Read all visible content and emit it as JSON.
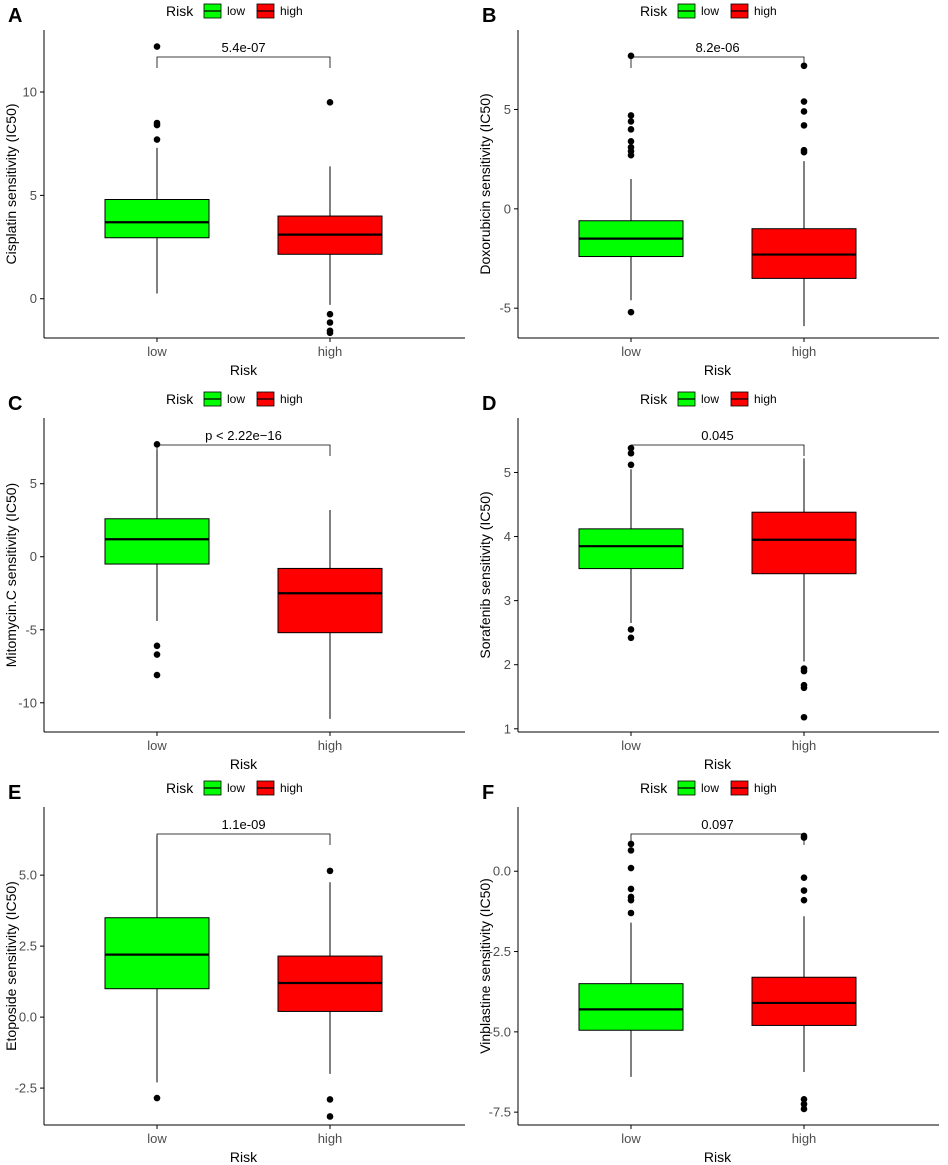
{
  "colors": {
    "low": "#00ff00",
    "high": "#ff0000",
    "axis": "#000000",
    "tick_text": "#4d4d4d"
  },
  "chart_data": [
    {
      "panel": "A",
      "type": "box",
      "categories": [
        "low",
        "high"
      ],
      "xlabel": "Risk",
      "ylabel": "Cisplatin sensitivity (IC50)",
      "legend": {
        "title": "Risk",
        "entries": [
          "low",
          "high"
        ],
        "placement": "top"
      },
      "pvalue": "5.4e-07",
      "ylim": [
        -1.9,
        13.0
      ],
      "yticks": [
        0,
        5,
        10
      ],
      "boxes": [
        {
          "group": "low",
          "whisker_low": 0.25,
          "q1": 2.95,
          "median": 3.7,
          "q3": 4.8,
          "whisker_high": 7.3,
          "outliers": [
            7.7,
            8.4,
            8.5,
            12.2
          ]
        },
        {
          "group": "high",
          "whisker_low": -0.3,
          "q1": 2.15,
          "median": 3.1,
          "q3": 4.0,
          "whisker_high": 6.4,
          "outliers": [
            9.5,
            -0.75,
            -1.15,
            -1.55,
            -1.65
          ]
        }
      ]
    },
    {
      "panel": "B",
      "type": "box",
      "categories": [
        "low",
        "high"
      ],
      "xlabel": "Risk",
      "ylabel": "Doxorubicin sensitivity (IC50)",
      "legend": {
        "title": "Risk",
        "entries": [
          "low",
          "high"
        ],
        "placement": "top"
      },
      "pvalue": "8.2e-06",
      "ylim": [
        -6.5,
        9.0
      ],
      "yticks": [
        -5,
        0,
        5
      ],
      "boxes": [
        {
          "group": "low",
          "whisker_low": -4.6,
          "q1": -2.4,
          "median": -1.5,
          "q3": -0.6,
          "whisker_high": 1.5,
          "outliers": [
            7.7,
            4.7,
            4.4,
            4.0,
            3.4,
            3.1,
            2.9,
            2.7,
            -5.2
          ]
        },
        {
          "group": "high",
          "whisker_low": -5.9,
          "q1": -3.5,
          "median": -2.3,
          "q3": -1.0,
          "whisker_high": 2.4,
          "outliers": [
            7.2,
            5.4,
            4.9,
            4.2,
            2.95,
            2.85
          ]
        }
      ]
    },
    {
      "panel": "C",
      "type": "box",
      "categories": [
        "low",
        "high"
      ],
      "xlabel": "Risk",
      "ylabel": "Mitomycin.C sensitivity (IC50)",
      "legend": {
        "title": "Risk",
        "entries": [
          "low",
          "high"
        ],
        "placement": "top"
      },
      "pvalue": "p < 2.22e−16",
      "ylim": [
        -12.0,
        9.5
      ],
      "yticks": [
        -10,
        -5,
        0,
        5
      ],
      "boxes": [
        {
          "group": "low",
          "whisker_low": -4.4,
          "q1": -0.5,
          "median": 1.2,
          "q3": 2.6,
          "whisker_high": 7.3,
          "outliers": [
            7.7,
            -6.1,
            -6.7,
            -8.1
          ]
        },
        {
          "group": "high",
          "whisker_low": -11.1,
          "q1": -5.2,
          "median": -2.5,
          "q3": -0.8,
          "whisker_high": 3.2,
          "outliers": []
        }
      ]
    },
    {
      "panel": "D",
      "type": "box",
      "categories": [
        "low",
        "high"
      ],
      "xlabel": "Risk",
      "ylabel": "Sorafenib sensitivity (IC50)",
      "legend": {
        "title": "Risk",
        "entries": [
          "low",
          "high"
        ],
        "placement": "top"
      },
      "pvalue": "0.045",
      "ylim": [
        0.95,
        5.85
      ],
      "yticks": [
        1,
        2,
        3,
        4,
        5
      ],
      "boxes": [
        {
          "group": "low",
          "whisker_low": 2.65,
          "q1": 3.5,
          "median": 3.85,
          "q3": 4.12,
          "whisker_high": 5.05,
          "outliers": [
            5.38,
            5.3,
            5.12,
            2.55,
            2.42
          ]
        },
        {
          "group": "high",
          "whisker_low": 2.05,
          "q1": 3.42,
          "median": 3.95,
          "q3": 4.38,
          "whisker_high": 5.22,
          "outliers": [
            1.94,
            1.9,
            1.68,
            1.64,
            1.18
          ]
        }
      ]
    },
    {
      "panel": "E",
      "type": "box",
      "categories": [
        "low",
        "high"
      ],
      "xlabel": "Risk",
      "ylabel": "Etoposide sensitivity (IC50)",
      "legend": {
        "title": "Risk",
        "entries": [
          "low",
          "high"
        ],
        "placement": "top"
      },
      "pvalue": "1.1e-09",
      "ylim": [
        -3.8,
        7.4
      ],
      "yticks": [
        -2.5,
        0.0,
        2.5,
        5.0
      ],
      "tick_labels": [
        "-2.5",
        "0.0",
        "2.5",
        "5.0"
      ],
      "boxes": [
        {
          "group": "low",
          "whisker_low": -2.3,
          "q1": 1.0,
          "median": 2.2,
          "q3": 3.5,
          "whisker_high": 6.4,
          "outliers": [
            -2.85
          ]
        },
        {
          "group": "high",
          "whisker_low": -2.0,
          "q1": 0.2,
          "median": 1.2,
          "q3": 2.15,
          "whisker_high": 4.75,
          "outliers": [
            5.15,
            -2.9,
            -3.5
          ]
        }
      ]
    },
    {
      "panel": "F",
      "type": "box",
      "categories": [
        "low",
        "high"
      ],
      "xlabel": "Risk",
      "ylabel": "Vinblastine sensitivity (IC50)",
      "legend": {
        "title": "Risk",
        "entries": [
          "low",
          "high"
        ],
        "placement": "top"
      },
      "pvalue": "0.097",
      "ylim": [
        -7.9,
        2.0
      ],
      "yticks": [
        -7.5,
        -5.0,
        -2.5,
        0.0
      ],
      "tick_labels": [
        "-7.5",
        "-5.0",
        "-2.5",
        "0.0"
      ],
      "boxes": [
        {
          "group": "low",
          "whisker_low": -6.4,
          "q1": -4.95,
          "median": -4.3,
          "q3": -3.5,
          "whisker_high": -1.6,
          "outliers": [
            0.85,
            0.65,
            0.1,
            -0.55,
            -0.8,
            -0.9,
            -1.3
          ]
        },
        {
          "group": "high",
          "whisker_low": -6.25,
          "q1": -4.8,
          "median": -4.1,
          "q3": -3.3,
          "whisker_high": -1.4,
          "outliers": [
            1.1,
            1.05,
            -0.2,
            -0.6,
            -0.9,
            -7.1,
            -7.25,
            -7.4
          ]
        }
      ]
    }
  ]
}
